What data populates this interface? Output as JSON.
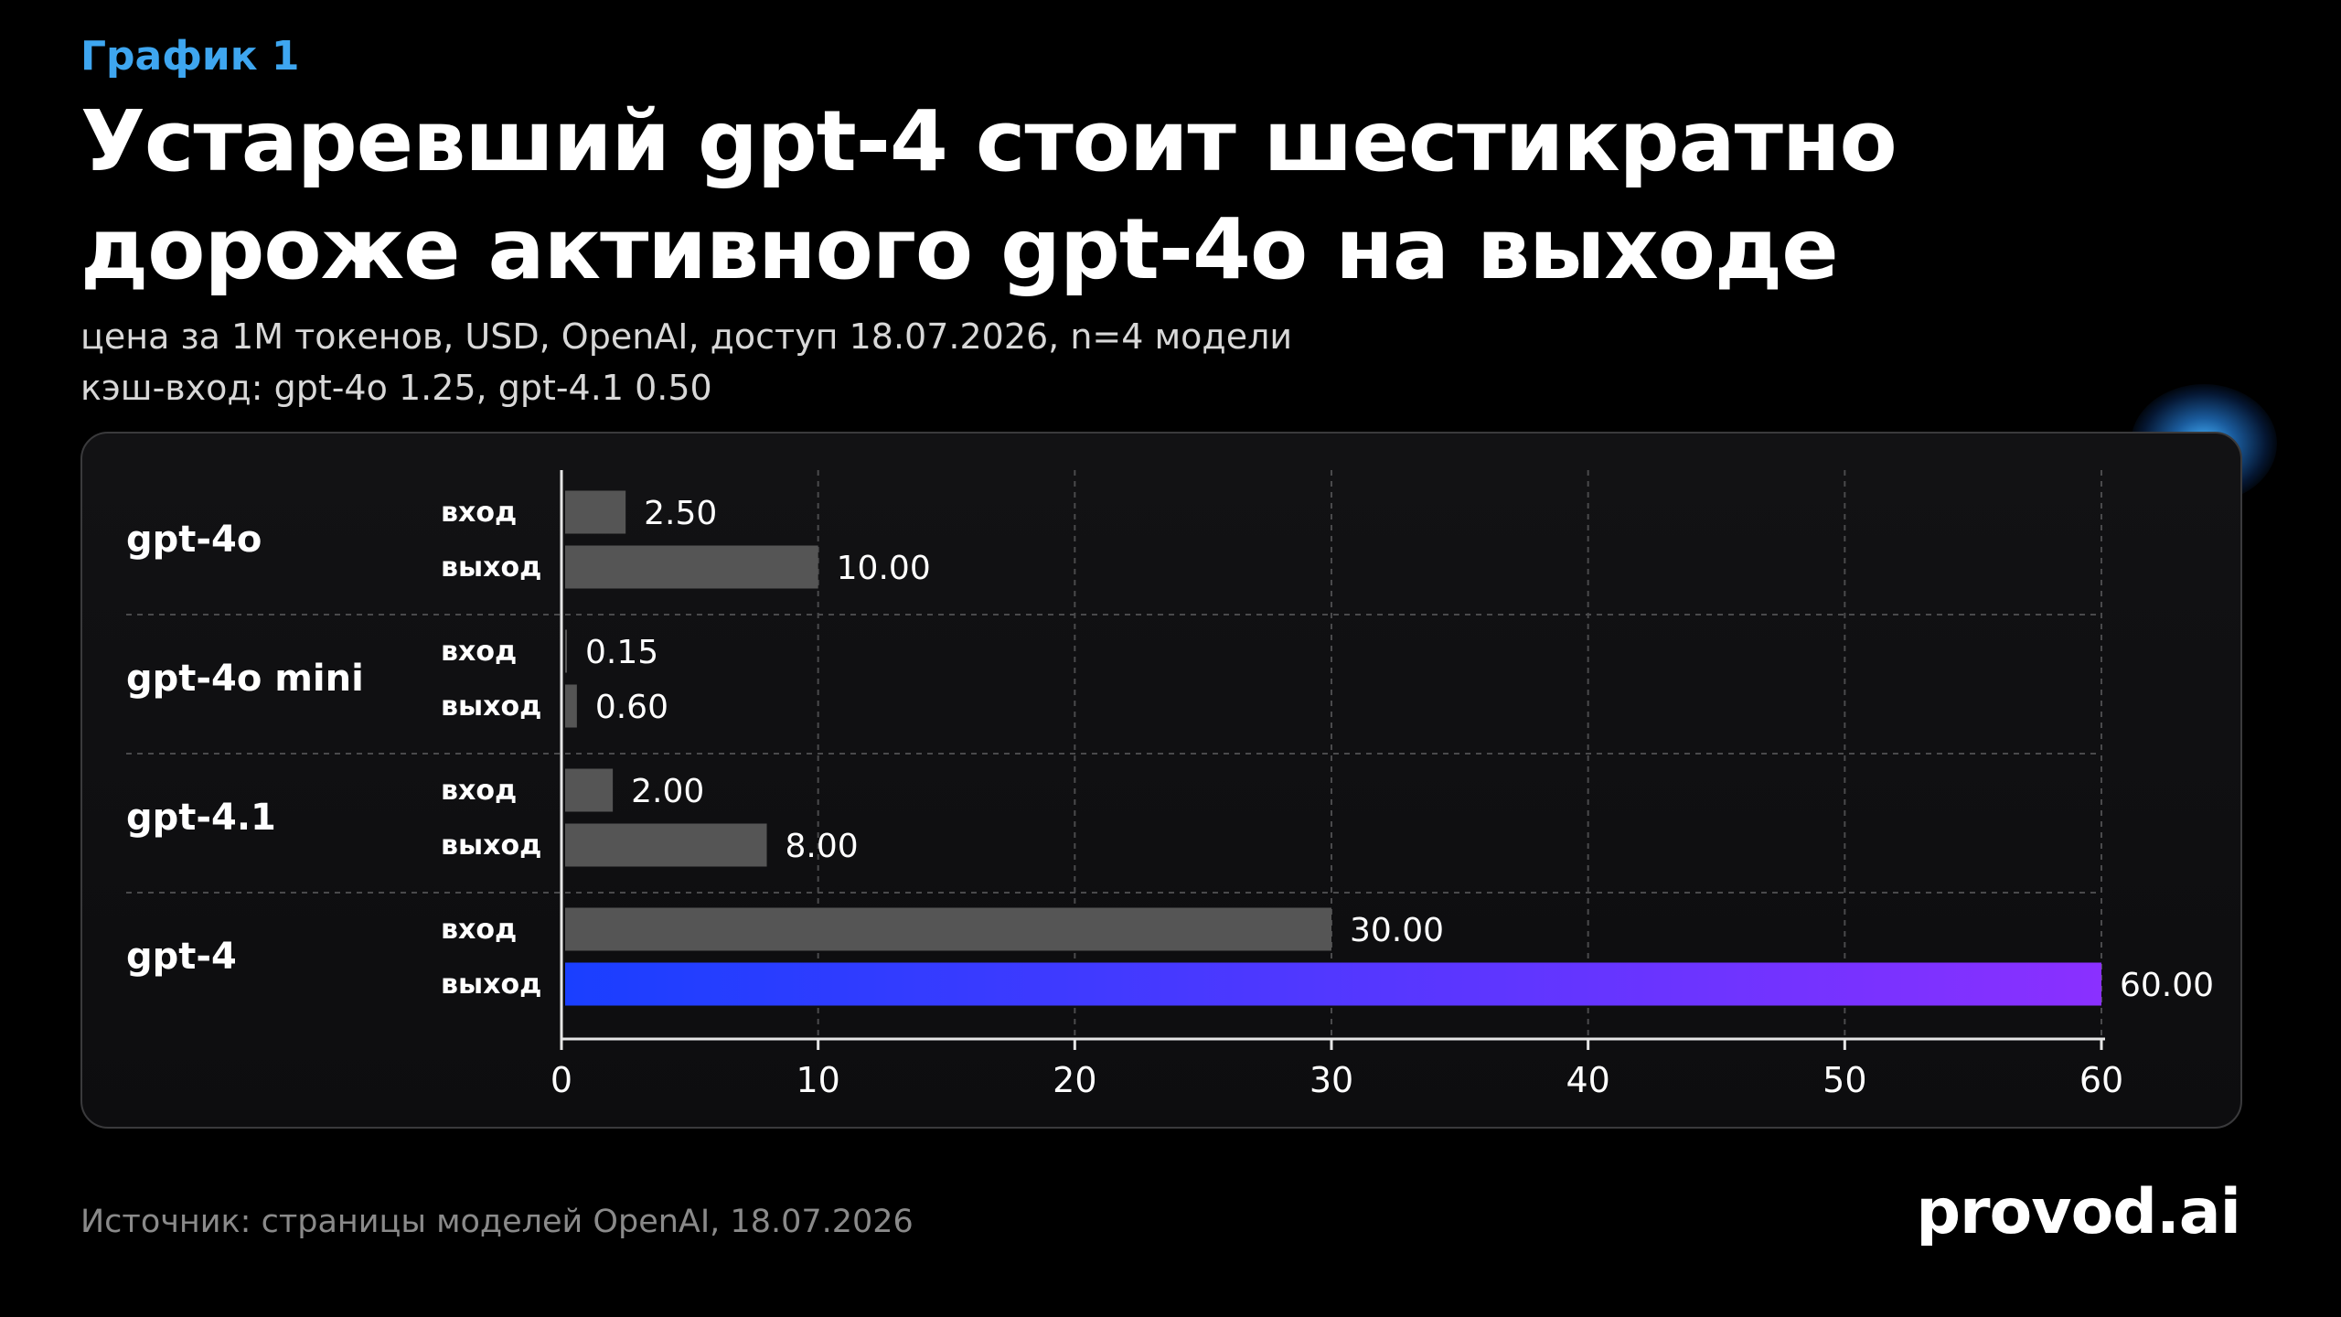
{
  "header": {
    "kicker": "График 1",
    "title_line1": "Устаревший gpt-4 стоит шестикратно",
    "title_line2": "дороже активного gpt-4o на выходе",
    "subtitle_line1": "цена за 1M токенов, USD, OpenAI, доступ 18.07.2026, n=4 модели",
    "subtitle_line2": "кэш-вход: gpt-4o 1.25, gpt-4.1 0.50"
  },
  "footer": {
    "source": "Источник: страницы моделей OpenAI, 18.07.2026",
    "logo": "provod.ai"
  },
  "colors": {
    "background": "#000000",
    "bar_default": "#555555",
    "bar_highlight_start": "#1a3fff",
    "bar_highlight_end": "#8a30ff",
    "kicker_accent": "#3ea6f0"
  },
  "chart_data": {
    "type": "bar",
    "orientation": "horizontal",
    "groups": [
      {
        "model": "gpt-4o",
        "bars": [
          {
            "label": "вход",
            "value": 2.5,
            "display": "2.50"
          },
          {
            "label": "выход",
            "value": 10.0,
            "display": "10.00"
          }
        ]
      },
      {
        "model": "gpt-4o mini",
        "bars": [
          {
            "label": "вход",
            "value": 0.15,
            "display": "0.15"
          },
          {
            "label": "выход",
            "value": 0.6,
            "display": "0.60"
          }
        ]
      },
      {
        "model": "gpt-4.1",
        "bars": [
          {
            "label": "вход",
            "value": 2.0,
            "display": "2.00"
          },
          {
            "label": "выход",
            "value": 8.0,
            "display": "8.00"
          }
        ]
      },
      {
        "model": "gpt-4",
        "bars": [
          {
            "label": "вход",
            "value": 30.0,
            "display": "30.00"
          },
          {
            "label": "выход",
            "value": 60.0,
            "display": "60.00",
            "highlight": true
          }
        ]
      }
    ],
    "xlim": [
      0,
      60
    ],
    "xticks": [
      0,
      10,
      20,
      30,
      40,
      50,
      60
    ],
    "grid": "vertical dashed",
    "legend": "none"
  }
}
